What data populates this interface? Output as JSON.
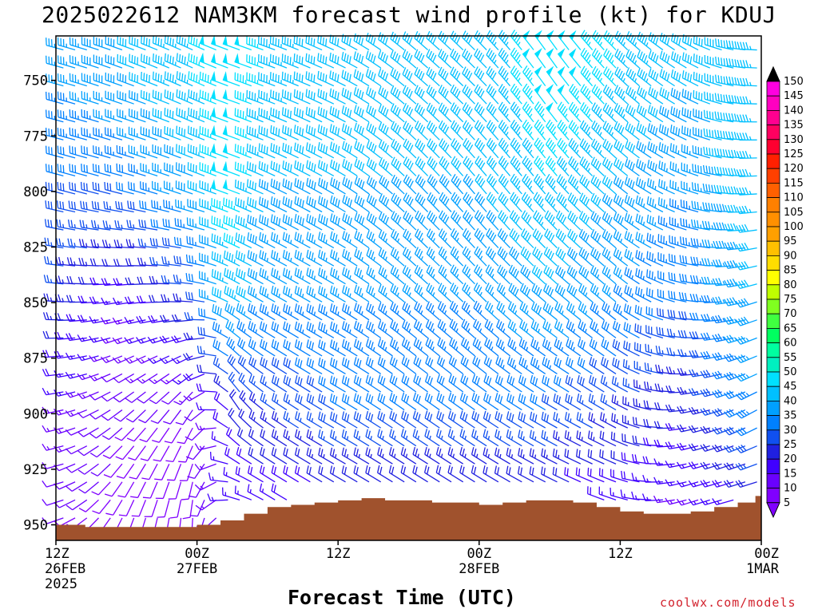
{
  "title": "2025022612 NAM3KM forecast wind profile (kt) for KDUJ",
  "credit": "coolwx.com/models",
  "chart_data": {
    "type": "wind-barb-time-height",
    "title": "2025022612 NAM3KM forecast wind profile (kt) for KDUJ",
    "xlabel": "Forecast Time (UTC)",
    "ylabel": "",
    "x_range_hours": [
      0,
      60
    ],
    "y_range_hpa": [
      957,
      730
    ],
    "y_scale": "pressure",
    "y_ticks": [
      {
        "value": 750,
        "label": "750"
      },
      {
        "value": 775,
        "label": "775"
      },
      {
        "value": 800,
        "label": "800"
      },
      {
        "value": 825,
        "label": "825"
      },
      {
        "value": 850,
        "label": "850"
      },
      {
        "value": 875,
        "label": "875"
      },
      {
        "value": 900,
        "label": "900"
      },
      {
        "value": 925,
        "label": "925"
      },
      {
        "value": 950,
        "label": "950"
      }
    ],
    "x_ticks": [
      {
        "hour": 0,
        "lines": [
          "12Z",
          "26FEB",
          "2025"
        ]
      },
      {
        "hour": 12,
        "lines": [
          "00Z",
          "27FEB"
        ]
      },
      {
        "hour": 24,
        "lines": [
          "12Z"
        ]
      },
      {
        "hour": 36,
        "lines": [
          "00Z",
          "28FEB"
        ]
      },
      {
        "hour": 48,
        "lines": [
          "12Z"
        ]
      },
      {
        "hour": 60,
        "lines": [
          "00Z",
          "1MAR"
        ]
      }
    ],
    "wind_field_keyframes": [
      {
        "hour": 0,
        "profile": [
          [
            950,
            255,
            10
          ],
          [
            900,
            260,
            15
          ],
          [
            850,
            275,
            25
          ],
          [
            800,
            285,
            30
          ],
          [
            750,
            285,
            35
          ]
        ]
      },
      {
        "hour": 6,
        "profile": [
          [
            950,
            200,
            8
          ],
          [
            900,
            230,
            10
          ],
          [
            850,
            260,
            15
          ],
          [
            800,
            285,
            30
          ],
          [
            750,
            290,
            40
          ]
        ]
      },
      {
        "hour": 12,
        "profile": [
          [
            950,
            180,
            10
          ],
          [
            900,
            210,
            10
          ],
          [
            850,
            275,
            25
          ],
          [
            800,
            290,
            40
          ],
          [
            750,
            295,
            45
          ]
        ]
      },
      {
        "hour": 15,
        "profile": [
          [
            950,
            270,
            15
          ],
          [
            900,
            330,
            20
          ],
          [
            850,
            300,
            45
          ],
          [
            800,
            290,
            50
          ],
          [
            750,
            290,
            50
          ]
        ]
      },
      {
        "hour": 18,
        "profile": [
          [
            950,
            300,
            15
          ],
          [
            900,
            305,
            25
          ],
          [
            850,
            300,
            35
          ],
          [
            800,
            295,
            40
          ],
          [
            750,
            290,
            45
          ]
        ]
      },
      {
        "hour": 24,
        "profile": [
          [
            950,
            300,
            15
          ],
          [
            900,
            300,
            30
          ],
          [
            850,
            300,
            35
          ],
          [
            800,
            300,
            40
          ],
          [
            750,
            295,
            40
          ]
        ]
      },
      {
        "hour": 30,
        "profile": [
          [
            950,
            300,
            15
          ],
          [
            900,
            305,
            30
          ],
          [
            850,
            310,
            35
          ],
          [
            800,
            315,
            40
          ],
          [
            750,
            310,
            40
          ]
        ]
      },
      {
        "hour": 36,
        "profile": [
          [
            950,
            300,
            15
          ],
          [
            900,
            305,
            30
          ],
          [
            850,
            315,
            35
          ],
          [
            800,
            320,
            40
          ],
          [
            750,
            315,
            40
          ]
        ]
      },
      {
        "hour": 42,
        "profile": [
          [
            950,
            295,
            15
          ],
          [
            900,
            300,
            30
          ],
          [
            850,
            310,
            40
          ],
          [
            800,
            320,
            45
          ],
          [
            750,
            325,
            50
          ]
        ]
      },
      {
        "hour": 48,
        "profile": [
          [
            950,
            285,
            15
          ],
          [
            900,
            300,
            25
          ],
          [
            850,
            310,
            35
          ],
          [
            800,
            310,
            40
          ],
          [
            750,
            315,
            45
          ]
        ]
      },
      {
        "hour": 54,
        "profile": [
          [
            950,
            250,
            12
          ],
          [
            900,
            260,
            20
          ],
          [
            850,
            280,
            30
          ],
          [
            800,
            290,
            35
          ],
          [
            750,
            300,
            40
          ]
        ]
      },
      {
        "hour": 60,
        "profile": [
          [
            950,
            260,
            15
          ],
          [
            900,
            240,
            35
          ],
          [
            850,
            250,
            40
          ],
          [
            800,
            265,
            45
          ],
          [
            750,
            270,
            45
          ]
        ]
      }
    ],
    "terrain_surface_pressure": [
      [
        0,
        950
      ],
      [
        2.5,
        951
      ],
      [
        12,
        950
      ],
      [
        14,
        948
      ],
      [
        16,
        945
      ],
      [
        18,
        942
      ],
      [
        20,
        941
      ],
      [
        22,
        940
      ],
      [
        24,
        939
      ],
      [
        26,
        938
      ],
      [
        28,
        939
      ],
      [
        32,
        940
      ],
      [
        36,
        941
      ],
      [
        38,
        940
      ],
      [
        40,
        939
      ],
      [
        44,
        940
      ],
      [
        46,
        942
      ],
      [
        48,
        944
      ],
      [
        50,
        945
      ],
      [
        52,
        945
      ],
      [
        54,
        944
      ],
      [
        56,
        942
      ],
      [
        58,
        940
      ],
      [
        59.5,
        937
      ],
      [
        60,
        936
      ]
    ],
    "colorbar": {
      "labels": [
        "5",
        "10",
        "15",
        "20",
        "25",
        "30",
        "35",
        "40",
        "45",
        "50",
        "55",
        "60",
        "65",
        "70",
        "75",
        "80",
        "85",
        "90",
        "95",
        "100",
        "105",
        "110",
        "115",
        "120",
        "125",
        "130",
        "135",
        "140",
        "145",
        "150"
      ],
      "colors": [
        "#8000ff",
        "#6a00ff",
        "#4000ff",
        "#2020e0",
        "#1050f0",
        "#0080ff",
        "#00a0ff",
        "#00c0ff",
        "#00e0ff",
        "#00f0c0",
        "#00ffa0",
        "#00ff60",
        "#40ff40",
        "#80ff20",
        "#c0ff00",
        "#ffff00",
        "#ffdd00",
        "#ffc000",
        "#ffa000",
        "#ff9000",
        "#ff8000",
        "#ff6000",
        "#ff4000",
        "#ff2000",
        "#ff0030",
        "#ff0060",
        "#ff0090",
        "#ff00c0",
        "#ff00e0"
      ],
      "top_color": "#000000",
      "bottom_color": "#8000ff"
    },
    "terrain_color": "#a0522d"
  }
}
